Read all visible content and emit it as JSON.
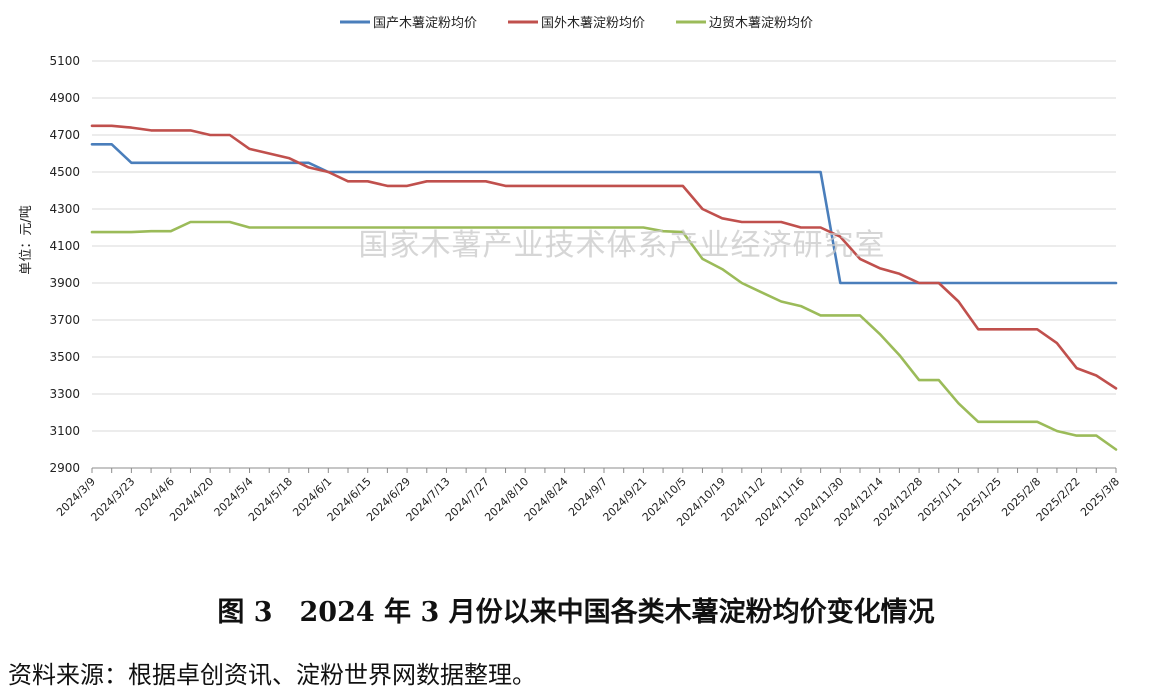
{
  "caption": "图 3　2024 年 3 月份以来中国各类木薯淀粉均价变化情况",
  "source": "资料来源：根据卓创资讯、淀粉世界网数据整理。",
  "watermark": "国家木薯产业技术体系产业经济研究室",
  "chart_data": {
    "type": "line",
    "title": "",
    "xlabel": "",
    "ylabel": "单位：元/吨",
    "ylim": [
      2900,
      5100
    ],
    "yticks": [
      2900,
      3100,
      3300,
      3500,
      3700,
      3900,
      4100,
      4300,
      4500,
      4700,
      4900,
      5100
    ],
    "grid": "horizontal",
    "legend": "top-center",
    "x": [
      "2024/3/9",
      "2024/3/16",
      "2024/3/23",
      "2024/3/30",
      "2024/4/6",
      "2024/4/13",
      "2024/4/20",
      "2024/4/27",
      "2024/5/4",
      "2024/5/11",
      "2024/5/18",
      "2024/5/25",
      "2024/6/1",
      "2024/6/8",
      "2024/6/15",
      "2024/6/22",
      "2024/6/29",
      "2024/7/6",
      "2024/7/13",
      "2024/7/20",
      "2024/7/27",
      "2024/8/3",
      "2024/8/10",
      "2024/8/17",
      "2024/8/24",
      "2024/8/31",
      "2024/9/7",
      "2024/9/14",
      "2024/9/21",
      "2024/9/28",
      "2024/10/5",
      "2024/10/12",
      "2024/10/19",
      "2024/10/26",
      "2024/11/2",
      "2024/11/9",
      "2024/11/16",
      "2024/11/23",
      "2024/11/30",
      "2024/12/7",
      "2024/12/14",
      "2024/12/21",
      "2024/12/28",
      "2025/1/4",
      "2025/1/11",
      "2025/1/18",
      "2025/1/25",
      "2025/2/1",
      "2025/2/8",
      "2025/2/15",
      "2025/2/22",
      "2025/3/1",
      "2025/3/8"
    ],
    "xticks": [
      "2024/3/9",
      "2024/3/23",
      "2024/4/6",
      "2024/4/20",
      "2024/5/4",
      "2024/5/18",
      "2024/6/1",
      "2024/6/15",
      "2024/6/29",
      "2024/7/13",
      "2024/7/27",
      "2024/8/10",
      "2024/8/24",
      "2024/9/7",
      "2024/9/21",
      "2024/10/5",
      "2024/10/19",
      "2024/11/2",
      "2024/11/16",
      "2024/11/30",
      "2024/12/14",
      "2024/12/28",
      "2025/1/11",
      "2025/1/25",
      "2025/2/8",
      "2025/2/22",
      "2025/3/8"
    ],
    "series": [
      {
        "name": "国产木薯淀粉均价",
        "color": "#4a7ebb",
        "values": [
          4650,
          4650,
          4550,
          4550,
          4550,
          4550,
          4550,
          4550,
          4550,
          4550,
          4550,
          4550,
          4500,
          4500,
          4500,
          4500,
          4500,
          4500,
          4500,
          4500,
          4500,
          4500,
          4500,
          4500,
          4500,
          4500,
          4500,
          4500,
          4500,
          4500,
          4500,
          4500,
          4500,
          4500,
          4500,
          4500,
          4500,
          4500,
          3900,
          3900,
          3900,
          3900,
          3900,
          3900,
          3900,
          3900,
          3900,
          3900,
          3900,
          3900,
          3900,
          3900,
          3900
        ]
      },
      {
        "name": "国外木薯淀粉均价",
        "color": "#c0504d",
        "values": [
          4750,
          4750,
          4740,
          4725,
          4725,
          4725,
          4700,
          4700,
          4625,
          4600,
          4575,
          4525,
          4500,
          4450,
          4450,
          4425,
          4425,
          4450,
          4450,
          4450,
          4450,
          4425,
          4425,
          4425,
          4425,
          4425,
          4425,
          4425,
          4425,
          4425,
          4425,
          4300,
          4250,
          4230,
          4230,
          4230,
          4200,
          4200,
          4150,
          4030,
          3980,
          3950,
          3900,
          3900,
          3800,
          3650,
          3650,
          3650,
          3650,
          3575,
          3440,
          3400,
          3330
        ]
      },
      {
        "name": "边贸木薯淀粉均价",
        "color": "#9bbb59",
        "values": [
          4175,
          4175,
          4175,
          4180,
          4180,
          4230,
          4230,
          4230,
          4200,
          4200,
          4200,
          4200,
          4200,
          4200,
          4200,
          4200,
          4200,
          4200,
          4200,
          4200,
          4200,
          4200,
          4200,
          4200,
          4200,
          4200,
          4200,
          4200,
          4200,
          4180,
          4175,
          4030,
          3975,
          3900,
          3850,
          3800,
          3775,
          3725,
          3725,
          3725,
          3625,
          3510,
          3375,
          3375,
          3250,
          3150,
          3150,
          3150,
          3150,
          3100,
          3075,
          3075,
          3000
        ]
      }
    ]
  }
}
